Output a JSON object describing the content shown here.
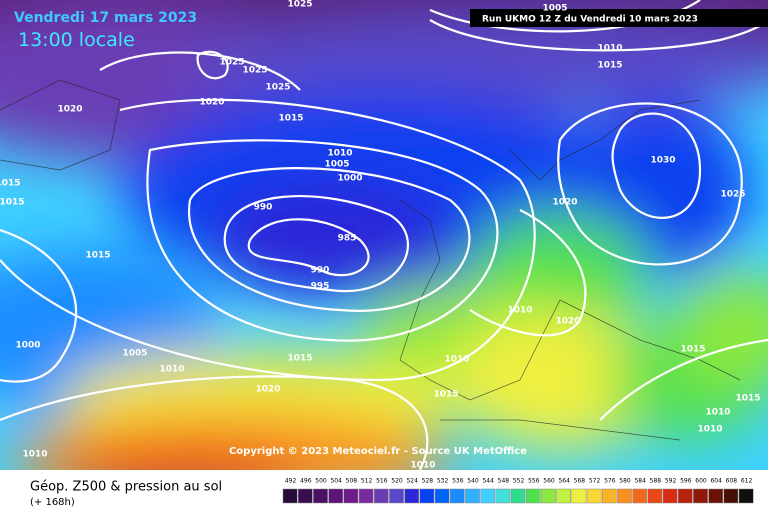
{
  "header": {
    "title": "Vendredi 17 mars 2023",
    "time": "13:00 locale",
    "run": "Run UKMO 12 Z du Vendredi 10 mars 2023"
  },
  "isobars": [
    "1025",
    "1005",
    "1010",
    "1015",
    "1025",
    "1025",
    "1025",
    "1020",
    "1020",
    "1015",
    "1010",
    "1005",
    "1000",
    "990",
    "985",
    "990",
    "995",
    "1015",
    "1015",
    "1015",
    "1030",
    "1025",
    "1020",
    "1010",
    "1020",
    "1000",
    "1005",
    "1010",
    "1015",
    "1010",
    "1015",
    "1020",
    "1015",
    "1015",
    "1010",
    "1010",
    "1010",
    "1010"
  ],
  "copyright": "Copyright © 2023 Meteociel.fr - Source UK MetOffice",
  "footer": {
    "title": "Géop. Z500 & pression au sol",
    "lead": "(+ 168h)"
  },
  "legend": {
    "values": [
      492,
      496,
      500,
      504,
      508,
      512,
      516,
      520,
      524,
      528,
      532,
      536,
      540,
      544,
      548,
      552,
      556,
      560,
      564,
      568,
      572,
      576,
      580,
      584,
      588,
      592,
      596,
      600,
      604,
      608,
      612
    ],
    "colors": [
      "#2a0a38",
      "#3a0c50",
      "#4c1066",
      "#5e1478",
      "#6e1a8c",
      "#7a2a9e",
      "#6a3cb4",
      "#5848c8",
      "#2a28d8",
      "#0a40f0",
      "#0064ff",
      "#1a8cff",
      "#30b0ff",
      "#40d0ff",
      "#40e0d8",
      "#30d890",
      "#50e050",
      "#8ce83c",
      "#c0f040",
      "#f0f040",
      "#f8d830",
      "#f8b428",
      "#f89020",
      "#f06c18",
      "#e84818",
      "#d82c14",
      "#b8200c",
      "#901808",
      "#6c1008",
      "#481008",
      "#101010"
    ]
  }
}
